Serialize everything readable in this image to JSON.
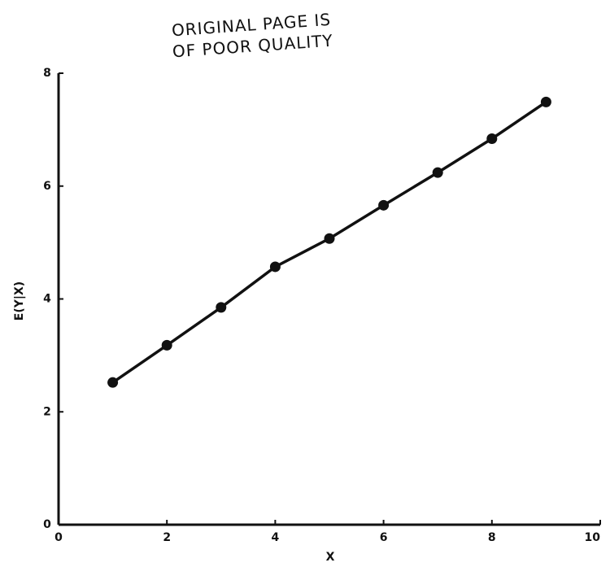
{
  "chart_data": {
    "type": "line",
    "annotations": [
      "ORIGINAL PAGE IS",
      "OF POOR QUALITY"
    ],
    "x_label": "X",
    "y_label": "E(Y|X)",
    "x": [
      1,
      2,
      3,
      4,
      5,
      6,
      7,
      8,
      9
    ],
    "series": [
      {
        "color": "#111111",
        "values": [
          2.52,
          3.18,
          3.85,
          4.57,
          5.07,
          5.66,
          6.24,
          6.84,
          7.49
        ]
      }
    ],
    "xlim": [
      0,
      10
    ],
    "xticks": [
      0,
      2,
      4,
      6,
      8,
      10
    ],
    "ylim": [
      0,
      8
    ],
    "yticks": [
      0,
      2,
      4,
      6,
      8
    ]
  }
}
